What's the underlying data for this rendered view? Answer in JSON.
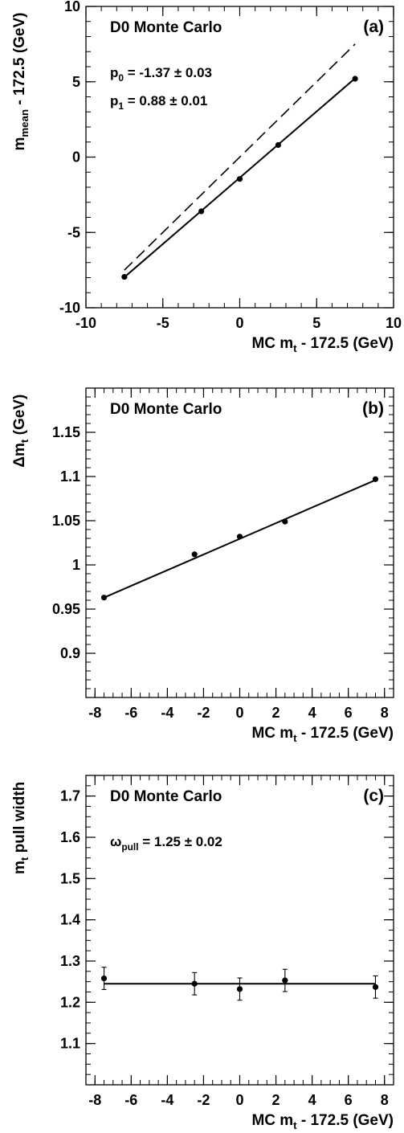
{
  "chart_data": [
    {
      "type": "scatter",
      "panel_label": "(a)",
      "inner_title": "D0  Monte Carlo",
      "xlabel": {
        "main": "MC m",
        "sub": "t",
        "rest": " - 172.5 (GeV)"
      },
      "ylabel": {
        "main": "m",
        "sub": "mean",
        "rest": " - 172.5 (GeV)"
      },
      "xlim": [
        -10,
        10
      ],
      "ylim": [
        -10,
        10
      ],
      "xticks": [
        -10,
        -5,
        0,
        5,
        10
      ],
      "yticks": [
        -10,
        -5,
        0,
        5,
        10
      ],
      "grid": false,
      "annotations": [
        {
          "pre": "p",
          "sub": "0",
          "text": " = -1.37 ± 0.03"
        },
        {
          "pre": "p",
          "sub": "1",
          "text": " = 0.88 ± 0.01"
        }
      ],
      "points": {
        "x": [
          -7.5,
          -2.5,
          0,
          2.5,
          7.5
        ],
        "y": [
          -7.95,
          -3.6,
          -1.45,
          0.8,
          5.2
        ]
      },
      "fit_line": {
        "x": [
          -7.5,
          7.5
        ],
        "y": [
          -7.97,
          5.23
        ],
        "style": "solid"
      },
      "reference_line": {
        "x": [
          -7.5,
          7.5
        ],
        "y": [
          -7.5,
          7.5
        ],
        "style": "dashed"
      }
    },
    {
      "type": "scatter",
      "panel_label": "(b)",
      "inner_title": "D0  Monte Carlo",
      "xlabel": {
        "main": "MC m",
        "sub": "t",
        "rest": " - 172.5 (GeV)"
      },
      "ylabel": {
        "main": "Δm",
        "sub": "t",
        "rest": " (GeV)"
      },
      "xlim": [
        -8.5,
        8.5
      ],
      "ylim": [
        0.85,
        1.2
      ],
      "xticks": [
        -8,
        -6,
        -4,
        -2,
        0,
        2,
        4,
        6,
        8
      ],
      "yticks": [
        0.9,
        0.95,
        1,
        1.05,
        1.1,
        1.15
      ],
      "grid": false,
      "annotations": [],
      "points": {
        "x": [
          -7.5,
          -2.5,
          0,
          2.5,
          7.5
        ],
        "y": [
          0.963,
          1.012,
          1.032,
          1.049,
          1.097
        ]
      },
      "fit_line": {
        "x": [
          -7.5,
          7.5
        ],
        "y": [
          0.963,
          1.096
        ],
        "style": "solid"
      }
    },
    {
      "type": "scatter",
      "panel_label": "(c)",
      "inner_title": "D0  Monte Carlo",
      "xlabel": {
        "main": "MC m",
        "sub": "t",
        "rest": " - 172.5 (GeV)"
      },
      "ylabel": {
        "main": "m",
        "sub": "t",
        "rest": " pull width"
      },
      "xlim": [
        -8.5,
        8.5
      ],
      "ylim": [
        1.0,
        1.75
      ],
      "xticks": [
        -8,
        -6,
        -4,
        -2,
        0,
        2,
        4,
        6,
        8
      ],
      "yticks": [
        1.1,
        1.2,
        1.3,
        1.4,
        1.5,
        1.6,
        1.7
      ],
      "grid": false,
      "annotations": [
        {
          "pre": "ω",
          "sub": "pull",
          "text": " = 1.25 ± 0.02"
        }
      ],
      "points": {
        "x": [
          -7.5,
          -2.5,
          0,
          2.5,
          7.5
        ],
        "y": [
          1.258,
          1.245,
          1.232,
          1.253,
          1.237
        ],
        "yerr": [
          0.027,
          0.027,
          0.027,
          0.027,
          0.027
        ]
      },
      "fit_line": {
        "x": [
          -7.5,
          7.5
        ],
        "y": [
          1.245,
          1.245
        ],
        "style": "solid"
      }
    }
  ]
}
